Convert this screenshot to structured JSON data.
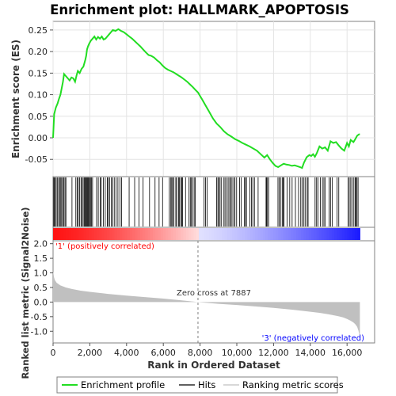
{
  "colors": {
    "profile": "#22dd22",
    "hits": "#000000",
    "metric": "#c0c0c0",
    "positive_label": "#ff0000",
    "negative_label": "#0000ff",
    "zero_line": "#808080"
  },
  "chart_data": {
    "type": "line",
    "title": "Enrichment plot: HALLMARK_APOPTOSIS",
    "xlabel": "Rank in Ordered Dataset",
    "xlim": [
      0,
      17500
    ],
    "x_ticks": [
      0,
      2000,
      4000,
      6000,
      8000,
      10000,
      12000,
      14000,
      16000
    ],
    "x_tick_labels": [
      "0",
      "2,000",
      "4,000",
      "6,000",
      "8,000",
      "10,000",
      "12,000",
      "14,000",
      "16,000"
    ],
    "dataset_size": 16700,
    "top_panel": {
      "ylabel": "Enrichment score (ES)",
      "ylim": [
        -0.09,
        0.27
      ],
      "y_ticks": [
        -0.05,
        0,
        0.05,
        0.1,
        0.15,
        0.2,
        0.25
      ],
      "y_tick_labels": [
        "-0.05",
        "0.00",
        "0.05",
        "0.10",
        "0.15",
        "0.20",
        "0.25"
      ],
      "series": [
        {
          "name": "Enrichment profile",
          "x": [
            0,
            60,
            150,
            250,
            320,
            400,
            470,
            540,
            600,
            700,
            800,
            900,
            1000,
            1100,
            1200,
            1280,
            1350,
            1450,
            1550,
            1650,
            1750,
            1800,
            1850,
            1900,
            1960,
            2050,
            2150,
            2250,
            2350,
            2450,
            2550,
            2650,
            2750,
            2850,
            2950,
            3050,
            3150,
            3250,
            3400,
            3550,
            3700,
            3850,
            4000,
            4150,
            4300,
            4450,
            4600,
            4750,
            4900,
            5050,
            5200,
            5350,
            5500,
            5650,
            5800,
            5950,
            6100,
            6250,
            6400,
            6550,
            6700,
            6850,
            7000,
            7150,
            7300,
            7450,
            7600,
            7750,
            7887,
            8100,
            8300,
            8500,
            8700,
            8900,
            9100,
            9300,
            9500,
            9700,
            9900,
            10100,
            10300,
            10500,
            10700,
            10900,
            11100,
            11300,
            11500,
            11650,
            11800,
            11950,
            12100,
            12250,
            12400,
            12550,
            12700,
            12850,
            13000,
            13150,
            13300,
            13450,
            13550,
            13650,
            13800,
            13950,
            14050,
            14150,
            14250,
            14350,
            14500,
            14650,
            14800,
            14950,
            15100,
            15250,
            15400,
            15550,
            15700,
            15850,
            16000,
            16100,
            16200,
            16350,
            16450,
            16550,
            16650,
            16700
          ],
          "y": [
            0.0,
            0.055,
            0.07,
            0.08,
            0.09,
            0.1,
            0.115,
            0.13,
            0.148,
            0.143,
            0.138,
            0.133,
            0.14,
            0.138,
            0.13,
            0.145,
            0.155,
            0.15,
            0.16,
            0.165,
            0.18,
            0.19,
            0.205,
            0.212,
            0.218,
            0.225,
            0.23,
            0.235,
            0.228,
            0.234,
            0.23,
            0.235,
            0.228,
            0.23,
            0.235,
            0.24,
            0.245,
            0.25,
            0.248,
            0.252,
            0.248,
            0.245,
            0.24,
            0.235,
            0.23,
            0.224,
            0.218,
            0.212,
            0.205,
            0.198,
            0.192,
            0.19,
            0.186,
            0.18,
            0.175,
            0.168,
            0.162,
            0.158,
            0.155,
            0.152,
            0.148,
            0.144,
            0.14,
            0.135,
            0.13,
            0.124,
            0.118,
            0.111,
            0.105,
            0.09,
            0.075,
            0.06,
            0.045,
            0.033,
            0.025,
            0.015,
            0.008,
            0.003,
            -0.003,
            -0.007,
            -0.012,
            -0.016,
            -0.02,
            -0.025,
            -0.03,
            -0.038,
            -0.046,
            -0.04,
            -0.05,
            -0.058,
            -0.065,
            -0.068,
            -0.064,
            -0.06,
            -0.062,
            -0.063,
            -0.065,
            -0.064,
            -0.066,
            -0.068,
            -0.07,
            -0.058,
            -0.045,
            -0.04,
            -0.042,
            -0.038,
            -0.044,
            -0.036,
            -0.02,
            -0.025,
            -0.022,
            -0.03,
            -0.008,
            -0.012,
            -0.01,
            -0.018,
            -0.025,
            -0.03,
            -0.012,
            -0.02,
            -0.005,
            -0.01,
            -0.003,
            0.005,
            0.008,
            0.008
          ]
        }
      ]
    },
    "hits_panel": {
      "hits_label": "Hits",
      "hit_ranks": [
        15,
        60,
        110,
        170,
        230,
        300,
        360,
        420,
        470,
        530,
        590,
        650,
        700,
        1030,
        1240,
        1310,
        1370,
        1440,
        1520,
        1580,
        1640,
        1700,
        1745,
        1790,
        1830,
        1870,
        1910,
        1950,
        1990,
        2040,
        2090,
        2150,
        2370,
        2460,
        2570,
        2620,
        2740,
        2840,
        2950,
        3000,
        3080,
        3180,
        3230,
        3330,
        3430,
        3530,
        3640,
        3730,
        4140,
        4440,
        4680,
        4900,
        5250,
        5550,
        5770,
        5960,
        6330,
        6410,
        6460,
        6510,
        6580,
        6680,
        6730,
        6830,
        6880,
        6950,
        7000,
        7050,
        7210,
        7400,
        7470,
        7520,
        7600,
        7680,
        7740,
        8220,
        8300,
        8380,
        8900,
        8970,
        9020,
        9090,
        9170,
        9300,
        9360,
        9450,
        9530,
        9610,
        9680,
        9740,
        9830,
        9900,
        9990,
        10150,
        10240,
        10410,
        10480,
        10520,
        10710,
        10800,
        10870,
        10960,
        11160,
        11590,
        11620,
        11670,
        11730,
        12240,
        12310,
        12380,
        12470,
        12530,
        12570,
        12740,
        12880,
        13010,
        13190,
        13360,
        13480,
        13560,
        13650,
        13720,
        13830,
        13880,
        14260,
        14340,
        14420,
        14550,
        14660,
        14740,
        14800,
        15030,
        15100,
        15200,
        15460,
        15550,
        16060,
        16120,
        16200,
        16280,
        16370,
        16440,
        16480,
        16540,
        16600
      ]
    },
    "metric_panel": {
      "ylabel": "Ranked list metric (Signal2Noise)",
      "ylim": [
        -1.4,
        2.1
      ],
      "y_ticks": [
        -1.0,
        -0.5,
        0.0,
        0.5,
        1.0,
        1.5,
        2.0
      ],
      "y_tick_labels": [
        "-1.0",
        "-0.5",
        "0.0",
        "0.5",
        "1.0",
        "1.5",
        "2.0"
      ],
      "curve_x": [
        0,
        20,
        50,
        100,
        200,
        400,
        700,
        1000,
        1500,
        2000,
        3000,
        4000,
        5000,
        6000,
        7000,
        7887,
        9000,
        10000,
        11000,
        12000,
        13000,
        14000,
        14500,
        15000,
        15500,
        15800,
        16000,
        16200,
        16350,
        16450,
        16550,
        16620,
        16680,
        16700
      ],
      "curve_y": [
        1.05,
        0.98,
        0.85,
        0.75,
        0.66,
        0.57,
        0.5,
        0.45,
        0.39,
        0.35,
        0.28,
        0.22,
        0.17,
        0.12,
        0.06,
        0.0,
        -0.06,
        -0.1,
        -0.15,
        -0.2,
        -0.26,
        -0.33,
        -0.37,
        -0.42,
        -0.48,
        -0.53,
        -0.58,
        -0.64,
        -0.7,
        -0.76,
        -0.85,
        -0.98,
        -1.15,
        -1.3
      ]
    },
    "annotations": {
      "positive": "'1' (positively correlated)",
      "negative": "'3' (negatively correlated)",
      "zero_cross": "Zero cross at 7887",
      "zero_cross_rank": 7887
    },
    "legend": [
      {
        "label": "Enrichment profile",
        "kind": "profile"
      },
      {
        "label": "Hits",
        "kind": "hits"
      },
      {
        "label": "Ranking metric scores",
        "kind": "metric"
      }
    ]
  }
}
